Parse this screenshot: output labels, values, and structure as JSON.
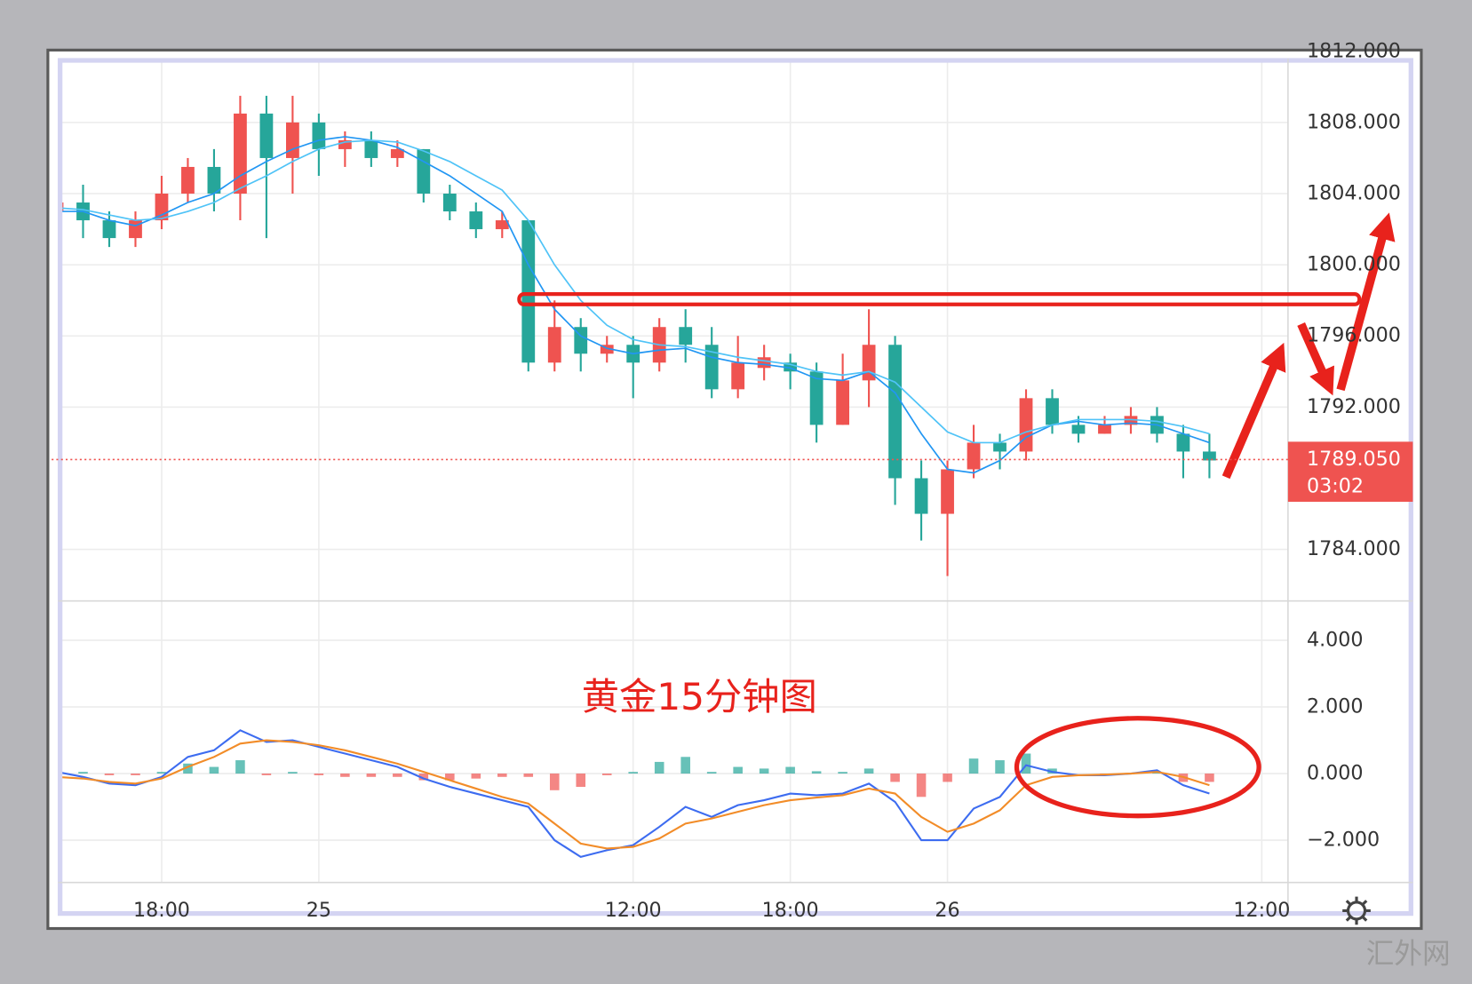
{
  "chart_data": [
    {
      "type": "candlestick",
      "open": [
        1803,
        1803.5,
        1802.5,
        1801.5,
        1802.5,
        1804,
        1805.5,
        1804,
        1808.5,
        1806,
        1808,
        1806.5,
        1807,
        1806,
        1806.5,
        1804,
        1803,
        1802,
        1802.5,
        1794.5,
        1796.5,
        1795,
        1795.5,
        1794.5,
        1796.5,
        1795.5,
        1793,
        1794.2,
        1794.5,
        1794,
        1791,
        1793.5,
        1795.5,
        1788,
        1786,
        1788.5,
        1790,
        1789.5,
        1792.5,
        1791,
        1790.5,
        1791,
        1791.5,
        1790.5,
        1789.5
      ],
      "high": [
        1805,
        1804.5,
        1803,
        1803,
        1805,
        1806,
        1806.5,
        1809.5,
        1809.5,
        1809.5,
        1808.5,
        1807.5,
        1807.5,
        1807,
        1806.5,
        1804.5,
        1803.5,
        1803,
        1802.5,
        1798,
        1797,
        1796,
        1796,
        1797,
        1797.5,
        1796.5,
        1796,
        1795.5,
        1795,
        1794.5,
        1795,
        1797.5,
        1796,
        1789,
        1789,
        1791,
        1790.5,
        1793,
        1793,
        1791.5,
        1791.5,
        1792,
        1792,
        1791,
        1790.5
      ],
      "low": [
        1802,
        1801.5,
        1801,
        1801,
        1802,
        1803.5,
        1803,
        1802.5,
        1801.5,
        1804,
        1805,
        1805.5,
        1805.5,
        1805.5,
        1803.5,
        1802.5,
        1801.5,
        1801.5,
        1794,
        1794,
        1794,
        1794.5,
        1792.5,
        1794,
        1794.5,
        1792.5,
        1792.5,
        1793.5,
        1793,
        1790,
        1791,
        1792,
        1786.5,
        1784.5,
        1782.5,
        1788,
        1788.5,
        1789,
        1790.5,
        1790,
        1790.5,
        1790.5,
        1790,
        1788,
        1788
      ],
      "close": [
        1803.5,
        1802.5,
        1801.5,
        1802.5,
        1804,
        1805.5,
        1804,
        1808.5,
        1806,
        1808,
        1806.5,
        1807,
        1806,
        1806.5,
        1804,
        1803,
        1802,
        1802.5,
        1794.5,
        1796.5,
        1795,
        1795.5,
        1794.5,
        1796.5,
        1795.5,
        1793,
        1794.5,
        1794.8,
        1794,
        1791,
        1793.5,
        1795.5,
        1788,
        1786,
        1788.5,
        1790,
        1789.5,
        1792.5,
        1791,
        1790.5,
        1791,
        1791.5,
        1790.5,
        1789.5,
        1789
      ],
      "up_color": "#ef5350",
      "down_color": "#26a69a",
      "series": [
        {
          "color": "#2196f3",
          "values": [
            1803,
            1803,
            1802.5,
            1802.2,
            1802.8,
            1803.5,
            1804,
            1805,
            1805.8,
            1806.5,
            1807,
            1807.2,
            1807,
            1806.6,
            1805.8,
            1805,
            1804,
            1803,
            1800,
            1797.5,
            1796,
            1795.3,
            1795,
            1795.2,
            1795.3,
            1794.8,
            1794.5,
            1794.4,
            1794.2,
            1793.6,
            1793.5,
            1794,
            1792.8,
            1790.5,
            1788.5,
            1788.3,
            1789,
            1790.3,
            1791,
            1791.2,
            1791,
            1791.1,
            1791,
            1790.5,
            1790
          ]
        },
        {
          "color": "#4fc3f7",
          "values": [
            1803.2,
            1803.1,
            1802.8,
            1802.5,
            1802.6,
            1803,
            1803.5,
            1804.3,
            1805,
            1805.8,
            1806.5,
            1806.9,
            1807,
            1806.9,
            1806.4,
            1805.8,
            1805,
            1804.2,
            1802.5,
            1800,
            1798,
            1796.6,
            1795.8,
            1795.5,
            1795.4,
            1795.1,
            1794.8,
            1794.6,
            1794.4,
            1794,
            1793.8,
            1794,
            1793.4,
            1792,
            1790.6,
            1790,
            1790,
            1790.6,
            1791,
            1791.3,
            1791.3,
            1791.3,
            1791.2,
            1790.9,
            1790.5
          ]
        }
      ],
      "xlim": [
        -0.2,
        47
      ],
      "ylim": [
        1781.1,
        1811.7
      ],
      "yticks": [
        {
          "value": 1784,
          "label": "1784.000"
        },
        {
          "value": 1792,
          "label": "1792.000"
        },
        {
          "value": 1796,
          "label": "1796.000"
        },
        {
          "value": 1800,
          "label": "1800.000"
        },
        {
          "value": 1804,
          "label": "1804.000"
        },
        {
          "value": 1808,
          "label": "1808.000"
        },
        {
          "value": 1812,
          "label": "1812.000"
        }
      ],
      "grid": true,
      "last_price": 1789.05,
      "last_price_label": "1789.050",
      "countdown": "03:02",
      "last_price_color": "#ef5350",
      "annotation": "黄金15分钟图"
    },
    {
      "type": "macd",
      "series": [
        {
          "color": "#3d6cf0",
          "values": [
            0.05,
            -0.1,
            -0.3,
            -0.35,
            -0.1,
            0.5,
            0.7,
            1.3,
            0.95,
            1.0,
            0.8,
            0.6,
            0.4,
            0.2,
            -0.15,
            -0.4,
            -0.6,
            -0.8,
            -1.0,
            -2.0,
            -2.5,
            -2.3,
            -2.15,
            -1.6,
            -1.0,
            -1.3,
            -0.95,
            -0.8,
            -0.6,
            -0.65,
            -0.6,
            -0.3,
            -0.85,
            -2.0,
            -2.0,
            -1.05,
            -0.7,
            0.25,
            0.05,
            -0.05,
            -0.05,
            0,
            0.1,
            -0.35,
            -0.6
          ]
        },
        {
          "color": "#f28c28",
          "values": [
            -0.1,
            -0.15,
            -0.25,
            -0.3,
            -0.15,
            0.2,
            0.5,
            0.9,
            1.0,
            0.95,
            0.85,
            0.7,
            0.5,
            0.3,
            0.05,
            -0.2,
            -0.45,
            -0.7,
            -0.9,
            -1.5,
            -2.1,
            -2.25,
            -2.2,
            -1.95,
            -1.5,
            -1.35,
            -1.15,
            -0.95,
            -0.8,
            -0.72,
            -0.65,
            -0.45,
            -0.6,
            -1.3,
            -1.75,
            -1.5,
            -1.1,
            -0.35,
            -0.1,
            -0.05,
            -0.03,
            0,
            0.05,
            -0.1,
            -0.35
          ]
        }
      ],
      "histogram": {
        "up_color": "#26a69a",
        "down_color": "#ef5350",
        "values": [
          0.15,
          0.05,
          -0.05,
          -0.05,
          0.05,
          0.3,
          0.2,
          0.4,
          -0.05,
          0.05,
          -0.05,
          -0.1,
          -0.1,
          -0.1,
          -0.2,
          -0.2,
          -0.15,
          -0.1,
          -0.1,
          -0.5,
          -0.4,
          -0.05,
          0.05,
          0.35,
          0.5,
          0.05,
          0.2,
          0.15,
          0.2,
          0.07,
          0.05,
          0.15,
          -0.25,
          -0.7,
          -0.25,
          0.45,
          0.4,
          0.6,
          0.15,
          0,
          -0.02,
          0,
          0.05,
          -0.25,
          -0.25
        ]
      },
      "xlim": [
        -0.2,
        47
      ],
      "ylim": [
        -3.27,
        5.18
      ],
      "yticks": [
        {
          "value": -2,
          "label": "−2.000"
        },
        {
          "value": 0,
          "label": "0.000"
        },
        {
          "value": 2,
          "label": "2.000"
        },
        {
          "value": 4,
          "label": "4.000"
        }
      ],
      "xticks": [
        {
          "value": 4,
          "label": "18:00"
        },
        {
          "value": 10,
          "label": "25"
        },
        {
          "value": 22,
          "label": "12:00"
        },
        {
          "value": 28,
          "label": "18:00"
        },
        {
          "value": 34,
          "label": "26"
        },
        {
          "value": 46,
          "label": "12:00"
        }
      ],
      "grid": true
    }
  ],
  "watermark": "汇外网"
}
